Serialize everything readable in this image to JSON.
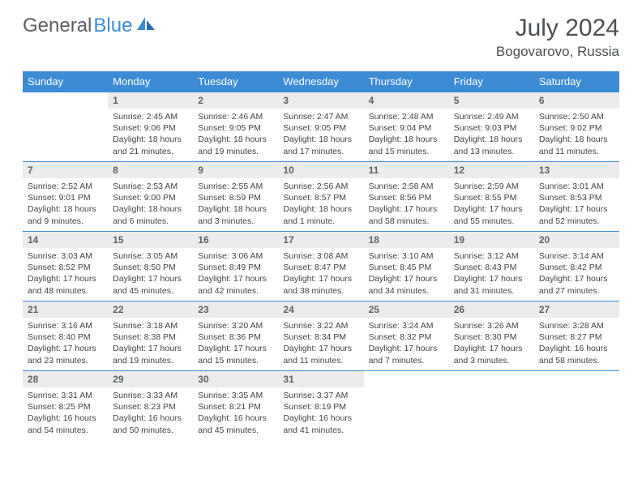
{
  "logo": {
    "text1": "General",
    "text2": "Blue"
  },
  "title": "July 2024",
  "location": "Bogovarovo, Russia",
  "colors": {
    "header_bg": "#3d8bd4",
    "header_text": "#ffffff",
    "daynum_bg": "#ececec",
    "border": "#3d8bd4",
    "body_text": "#404448",
    "logo_gray": "#5a5f64",
    "logo_blue": "#3d8bd4"
  },
  "weekdays": [
    "Sunday",
    "Monday",
    "Tuesday",
    "Wednesday",
    "Thursday",
    "Friday",
    "Saturday"
  ],
  "weeks": [
    [
      {
        "day": "",
        "lines": [
          "",
          "",
          "",
          ""
        ]
      },
      {
        "day": "1",
        "lines": [
          "Sunrise: 2:45 AM",
          "Sunset: 9:06 PM",
          "Daylight: 18 hours",
          "and 21 minutes."
        ]
      },
      {
        "day": "2",
        "lines": [
          "Sunrise: 2:46 AM",
          "Sunset: 9:05 PM",
          "Daylight: 18 hours",
          "and 19 minutes."
        ]
      },
      {
        "day": "3",
        "lines": [
          "Sunrise: 2:47 AM",
          "Sunset: 9:05 PM",
          "Daylight: 18 hours",
          "and 17 minutes."
        ]
      },
      {
        "day": "4",
        "lines": [
          "Sunrise: 2:48 AM",
          "Sunset: 9:04 PM",
          "Daylight: 18 hours",
          "and 15 minutes."
        ]
      },
      {
        "day": "5",
        "lines": [
          "Sunrise: 2:49 AM",
          "Sunset: 9:03 PM",
          "Daylight: 18 hours",
          "and 13 minutes."
        ]
      },
      {
        "day": "6",
        "lines": [
          "Sunrise: 2:50 AM",
          "Sunset: 9:02 PM",
          "Daylight: 18 hours",
          "and 11 minutes."
        ]
      }
    ],
    [
      {
        "day": "7",
        "lines": [
          "Sunrise: 2:52 AM",
          "Sunset: 9:01 PM",
          "Daylight: 18 hours",
          "and 9 minutes."
        ]
      },
      {
        "day": "8",
        "lines": [
          "Sunrise: 2:53 AM",
          "Sunset: 9:00 PM",
          "Daylight: 18 hours",
          "and 6 minutes."
        ]
      },
      {
        "day": "9",
        "lines": [
          "Sunrise: 2:55 AM",
          "Sunset: 8:59 PM",
          "Daylight: 18 hours",
          "and 3 minutes."
        ]
      },
      {
        "day": "10",
        "lines": [
          "Sunrise: 2:56 AM",
          "Sunset: 8:57 PM",
          "Daylight: 18 hours",
          "and 1 minute."
        ]
      },
      {
        "day": "11",
        "lines": [
          "Sunrise: 2:58 AM",
          "Sunset: 8:56 PM",
          "Daylight: 17 hours",
          "and 58 minutes."
        ]
      },
      {
        "day": "12",
        "lines": [
          "Sunrise: 2:59 AM",
          "Sunset: 8:55 PM",
          "Daylight: 17 hours",
          "and 55 minutes."
        ]
      },
      {
        "day": "13",
        "lines": [
          "Sunrise: 3:01 AM",
          "Sunset: 8:53 PM",
          "Daylight: 17 hours",
          "and 52 minutes."
        ]
      }
    ],
    [
      {
        "day": "14",
        "lines": [
          "Sunrise: 3:03 AM",
          "Sunset: 8:52 PM",
          "Daylight: 17 hours",
          "and 48 minutes."
        ]
      },
      {
        "day": "15",
        "lines": [
          "Sunrise: 3:05 AM",
          "Sunset: 8:50 PM",
          "Daylight: 17 hours",
          "and 45 minutes."
        ]
      },
      {
        "day": "16",
        "lines": [
          "Sunrise: 3:06 AM",
          "Sunset: 8:49 PM",
          "Daylight: 17 hours",
          "and 42 minutes."
        ]
      },
      {
        "day": "17",
        "lines": [
          "Sunrise: 3:08 AM",
          "Sunset: 8:47 PM",
          "Daylight: 17 hours",
          "and 38 minutes."
        ]
      },
      {
        "day": "18",
        "lines": [
          "Sunrise: 3:10 AM",
          "Sunset: 8:45 PM",
          "Daylight: 17 hours",
          "and 34 minutes."
        ]
      },
      {
        "day": "19",
        "lines": [
          "Sunrise: 3:12 AM",
          "Sunset: 8:43 PM",
          "Daylight: 17 hours",
          "and 31 minutes."
        ]
      },
      {
        "day": "20",
        "lines": [
          "Sunrise: 3:14 AM",
          "Sunset: 8:42 PM",
          "Daylight: 17 hours",
          "and 27 minutes."
        ]
      }
    ],
    [
      {
        "day": "21",
        "lines": [
          "Sunrise: 3:16 AM",
          "Sunset: 8:40 PM",
          "Daylight: 17 hours",
          "and 23 minutes."
        ]
      },
      {
        "day": "22",
        "lines": [
          "Sunrise: 3:18 AM",
          "Sunset: 8:38 PM",
          "Daylight: 17 hours",
          "and 19 minutes."
        ]
      },
      {
        "day": "23",
        "lines": [
          "Sunrise: 3:20 AM",
          "Sunset: 8:36 PM",
          "Daylight: 17 hours",
          "and 15 minutes."
        ]
      },
      {
        "day": "24",
        "lines": [
          "Sunrise: 3:22 AM",
          "Sunset: 8:34 PM",
          "Daylight: 17 hours",
          "and 11 minutes."
        ]
      },
      {
        "day": "25",
        "lines": [
          "Sunrise: 3:24 AM",
          "Sunset: 8:32 PM",
          "Daylight: 17 hours",
          "and 7 minutes."
        ]
      },
      {
        "day": "26",
        "lines": [
          "Sunrise: 3:26 AM",
          "Sunset: 8:30 PM",
          "Daylight: 17 hours",
          "and 3 minutes."
        ]
      },
      {
        "day": "27",
        "lines": [
          "Sunrise: 3:28 AM",
          "Sunset: 8:27 PM",
          "Daylight: 16 hours",
          "and 58 minutes."
        ]
      }
    ],
    [
      {
        "day": "28",
        "lines": [
          "Sunrise: 3:31 AM",
          "Sunset: 8:25 PM",
          "Daylight: 16 hours",
          "and 54 minutes."
        ]
      },
      {
        "day": "29",
        "lines": [
          "Sunrise: 3:33 AM",
          "Sunset: 8:23 PM",
          "Daylight: 16 hours",
          "and 50 minutes."
        ]
      },
      {
        "day": "30",
        "lines": [
          "Sunrise: 3:35 AM",
          "Sunset: 8:21 PM",
          "Daylight: 16 hours",
          "and 45 minutes."
        ]
      },
      {
        "day": "31",
        "lines": [
          "Sunrise: 3:37 AM",
          "Sunset: 8:19 PM",
          "Daylight: 16 hours",
          "and 41 minutes."
        ]
      },
      {
        "day": "",
        "lines": [
          "",
          "",
          "",
          ""
        ]
      },
      {
        "day": "",
        "lines": [
          "",
          "",
          "",
          ""
        ]
      },
      {
        "day": "",
        "lines": [
          "",
          "",
          "",
          ""
        ]
      }
    ]
  ]
}
